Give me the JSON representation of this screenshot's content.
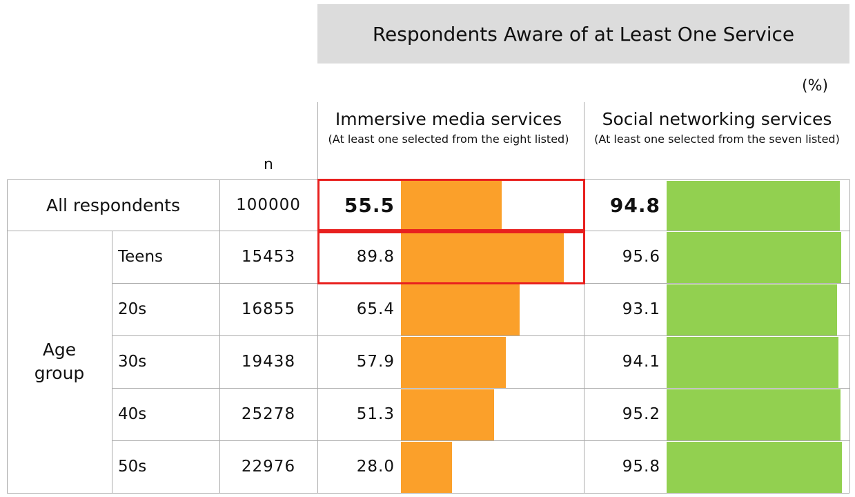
{
  "title": "Respondents Aware of at Least One Service",
  "unit": "(%)",
  "columns": {
    "n": "n",
    "immersive": {
      "title": "Immersive media services",
      "subtitle": "(At least one selected from the eight listed)"
    },
    "social": {
      "title": "Social networking services",
      "subtitle": "(At least one selected from the seven listed)"
    }
  },
  "group_label": "Age group",
  "colors": {
    "immersive": "#fba02a",
    "social": "#92d050",
    "highlight": "#e8201e"
  },
  "chart_data": {
    "type": "bar",
    "categories": [
      "All respondents",
      "Teens",
      "20s",
      "30s",
      "40s",
      "50s"
    ],
    "n": [
      "100000",
      "15453",
      "16855",
      "19438",
      "25278",
      "22976"
    ],
    "series": [
      {
        "name": "Immersive media services",
        "values": [
          55.5,
          89.8,
          65.4,
          57.9,
          51.3,
          28.0
        ],
        "labels": [
          "55.5",
          "89.8",
          "65.4",
          "57.9",
          "51.3",
          "28.0"
        ]
      },
      {
        "name": "Social networking services",
        "values": [
          94.8,
          95.6,
          93.1,
          94.1,
          95.2,
          95.8
        ],
        "labels": [
          "94.8",
          "95.6",
          "93.1",
          "94.1",
          "95.2",
          "95.8"
        ]
      }
    ],
    "ylim": [
      0,
      100
    ]
  }
}
